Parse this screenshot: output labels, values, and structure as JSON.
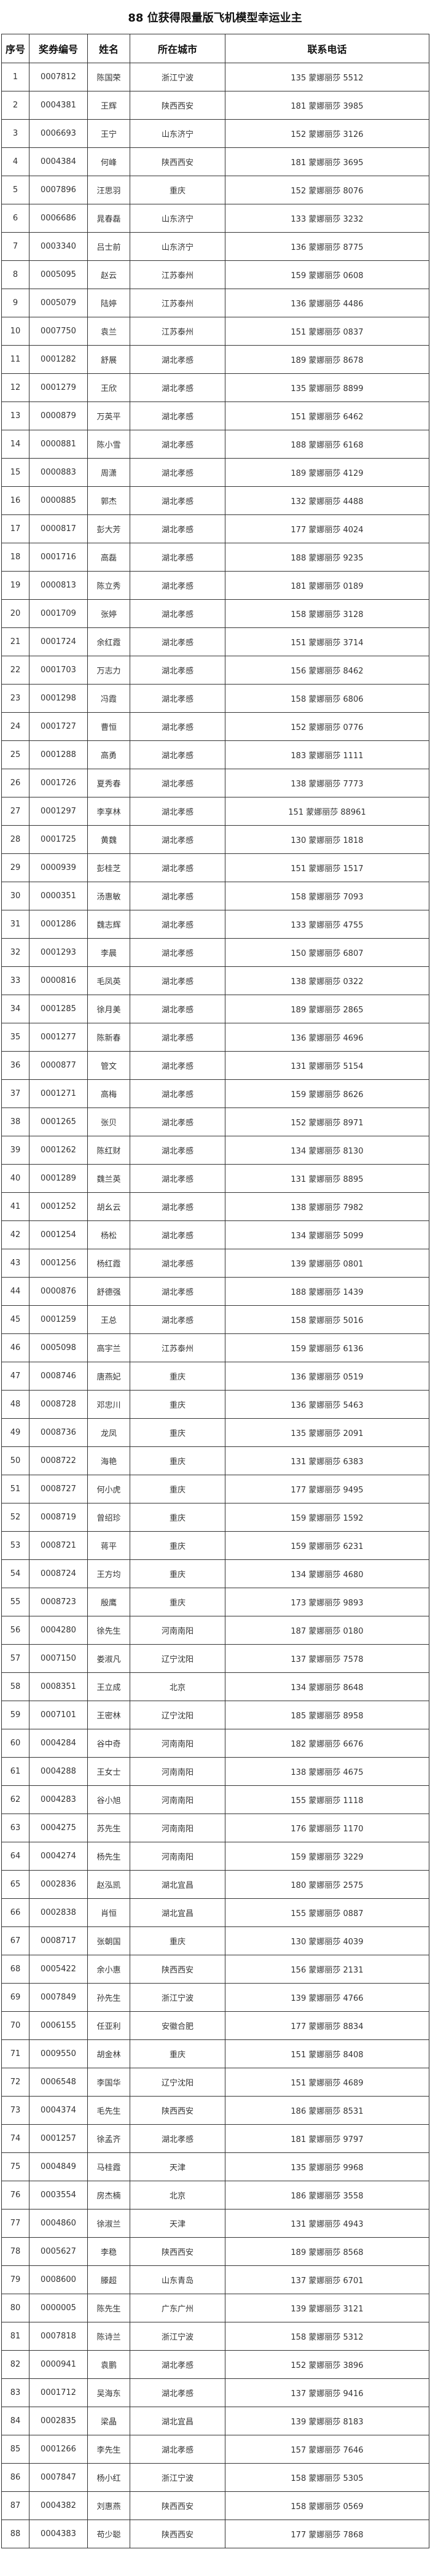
{
  "title": "88 位获得限量版飞机模型幸运业主",
  "columns": [
    "序号",
    "奖券编号",
    "姓名",
    "所在城市",
    "联系电话"
  ],
  "rows": [
    [
      "1",
      "0007812",
      "陈国荣",
      "浙江宁波",
      "135 蒙娜丽莎 5512"
    ],
    [
      "2",
      "0004381",
      "王辉",
      "陕西西安",
      "181 蒙娜丽莎 3985"
    ],
    [
      "3",
      "0006693",
      "王宁",
      "山东济宁",
      "152 蒙娜丽莎 3126"
    ],
    [
      "4",
      "0004384",
      "何峰",
      "陕西西安",
      "181 蒙娜丽莎 3695"
    ],
    [
      "5",
      "0007896",
      "汪思羽",
      "重庆",
      "152 蒙娜丽莎 8076"
    ],
    [
      "6",
      "0006686",
      "晁春磊",
      "山东济宁",
      "133 蒙娜丽莎 3232"
    ],
    [
      "7",
      "0003340",
      "吕士前",
      "山东济宁",
      "136 蒙娜丽莎 8775"
    ],
    [
      "8",
      "0005095",
      "赵云",
      "江苏泰州",
      "159 蒙娜丽莎 0608"
    ],
    [
      "9",
      "0005079",
      "陆婷",
      "江苏泰州",
      "136 蒙娜丽莎 4486"
    ],
    [
      "10",
      "0007750",
      "袁兰",
      "江苏泰州",
      "151 蒙娜丽莎 0837"
    ],
    [
      "11",
      "0001282",
      "舒展",
      "湖北孝感",
      "189 蒙娜丽莎 8678"
    ],
    [
      "12",
      "0001279",
      "王欣",
      "湖北孝感",
      "135 蒙娜丽莎 8899"
    ],
    [
      "13",
      "0000879",
      "万英平",
      "湖北孝感",
      "151 蒙娜丽莎 6462"
    ],
    [
      "14",
      "0000881",
      "陈小雪",
      "湖北孝感",
      "188 蒙娜丽莎 6168"
    ],
    [
      "15",
      "0000883",
      "周潇",
      "湖北孝感",
      "189 蒙娜丽莎 4129"
    ],
    [
      "16",
      "0000885",
      "郭杰",
      "湖北孝感",
      "132 蒙娜丽莎 4488"
    ],
    [
      "17",
      "0000817",
      "彭大芳",
      "湖北孝感",
      "177 蒙娜丽莎 4024"
    ],
    [
      "18",
      "0001716",
      "高磊",
      "湖北孝感",
      "188 蒙娜丽莎 9235"
    ],
    [
      "19",
      "0000813",
      "陈立秀",
      "湖北孝感",
      "181 蒙娜丽莎 0189"
    ],
    [
      "20",
      "0001709",
      "张婷",
      "湖北孝感",
      "158 蒙娜丽莎 3128"
    ],
    [
      "21",
      "0001724",
      "余红霞",
      "湖北孝感",
      "151 蒙娜丽莎 3714"
    ],
    [
      "22",
      "0001703",
      "万志力",
      "湖北孝感",
      "156 蒙娜丽莎 8462"
    ],
    [
      "23",
      "0001298",
      "冯霞",
      "湖北孝感",
      "158 蒙娜丽莎 6806"
    ],
    [
      "24",
      "0001727",
      "曹恒",
      "湖北孝感",
      "152 蒙娜丽莎 0776"
    ],
    [
      "25",
      "0001288",
      "高勇",
      "湖北孝感",
      "183 蒙娜丽莎 1111"
    ],
    [
      "26",
      "0001726",
      "夏秀春",
      "湖北孝感",
      "138 蒙娜丽莎 7773"
    ],
    [
      "27",
      "0001297",
      "李享林",
      "湖北孝感",
      "151 蒙娜丽莎 88961"
    ],
    [
      "28",
      "0001725",
      "黄魏",
      "湖北孝感",
      "130 蒙娜丽莎 1818"
    ],
    [
      "29",
      "0000939",
      "彭桂芝",
      "湖北孝感",
      "151 蒙娜丽莎 1517"
    ],
    [
      "30",
      "0000351",
      "汤惠敏",
      "湖北孝感",
      "158 蒙娜丽莎 7093"
    ],
    [
      "31",
      "0001286",
      "魏志辉",
      "湖北孝感",
      "133 蒙娜丽莎 4755"
    ],
    [
      "32",
      "0001293",
      "李晨",
      "湖北孝感",
      "150 蒙娜丽莎 6807"
    ],
    [
      "33",
      "0000816",
      "毛凤英",
      "湖北孝感",
      "138 蒙娜丽莎 0322"
    ],
    [
      "34",
      "0001285",
      "徐月美",
      "湖北孝感",
      "189 蒙娜丽莎 2865"
    ],
    [
      "35",
      "0001277",
      "陈新春",
      "湖北孝感",
      "136 蒙娜丽莎 4696"
    ],
    [
      "36",
      "0000877",
      "管文",
      "湖北孝感",
      "131 蒙娜丽莎 5154"
    ],
    [
      "37",
      "0001271",
      "高梅",
      "湖北孝感",
      "159 蒙娜丽莎 8626"
    ],
    [
      "38",
      "0001265",
      "张贝",
      "湖北孝感",
      "152 蒙娜丽莎 8971"
    ],
    [
      "39",
      "0001262",
      "陈红财",
      "湖北孝感",
      "134 蒙娜丽莎 8130"
    ],
    [
      "40",
      "0001289",
      "魏兰英",
      "湖北孝感",
      "131 蒙娜丽莎 8895"
    ],
    [
      "41",
      "0001252",
      "胡幺云",
      "湖北孝感",
      "138 蒙娜丽莎 7982"
    ],
    [
      "42",
      "0001254",
      "杨松",
      "湖北孝感",
      "134 蒙娜丽莎 5099"
    ],
    [
      "43",
      "0001256",
      "杨红霞",
      "湖北孝感",
      "139 蒙娜丽莎 0801"
    ],
    [
      "44",
      "0000876",
      "舒德强",
      "湖北孝感",
      "188 蒙娜丽莎 1439"
    ],
    [
      "45",
      "0001259",
      "王总",
      "湖北孝感",
      "158 蒙娜丽莎 5016"
    ],
    [
      "46",
      "0005098",
      "高宇兰",
      "江苏泰州",
      "159 蒙娜丽莎 6136"
    ],
    [
      "47",
      "0008746",
      "唐燕妃",
      "重庆",
      "136 蒙娜丽莎 0519"
    ],
    [
      "48",
      "0008728",
      "邓忠川",
      "重庆",
      "136 蒙娜丽莎 5463"
    ],
    [
      "49",
      "0008736",
      "龙凤",
      "重庆",
      "135 蒙娜丽莎 2091"
    ],
    [
      "50",
      "0008722",
      "海艳",
      "重庆",
      "131 蒙娜丽莎 6383"
    ],
    [
      "51",
      "0008727",
      "何小虎",
      "重庆",
      "177 蒙娜丽莎 9495"
    ],
    [
      "52",
      "0008719",
      "曾绍珍",
      "重庆",
      "159 蒙娜丽莎 1592"
    ],
    [
      "53",
      "0008721",
      "蒋平",
      "重庆",
      "159 蒙娜丽莎 6231"
    ],
    [
      "54",
      "0008724",
      "王方均",
      "重庆",
      "134 蒙娜丽莎 4680"
    ],
    [
      "55",
      "0008723",
      "殷鹰",
      "重庆",
      "173 蒙娜丽莎 9893"
    ],
    [
      "56",
      "0004280",
      "徐先生",
      "河南南阳",
      "187 蒙娜丽莎 0180"
    ],
    [
      "57",
      "0007150",
      "娄淑凡",
      "辽宁沈阳",
      "137 蒙娜丽莎 7578"
    ],
    [
      "58",
      "0008351",
      "王立成",
      "北京",
      "134 蒙娜丽莎 8648"
    ],
    [
      "59",
      "0007101",
      "王密林",
      "辽宁沈阳",
      "185 蒙娜丽莎 8958"
    ],
    [
      "60",
      "0004284",
      "谷中奇",
      "河南南阳",
      "182 蒙娜丽莎 6676"
    ],
    [
      "61",
      "0004288",
      "王女士",
      "河南南阳",
      "138 蒙娜丽莎 4675"
    ],
    [
      "62",
      "0004283",
      "谷小旭",
      "河南南阳",
      "155 蒙娜丽莎 1118"
    ],
    [
      "63",
      "0004275",
      "苏先生",
      "河南南阳",
      "176 蒙娜丽莎 1170"
    ],
    [
      "64",
      "0004274",
      "杨先生",
      "河南南阳",
      "159 蒙娜丽莎 3229"
    ],
    [
      "65",
      "0002836",
      "赵泓凯",
      "湖北宜昌",
      "180 蒙娜丽莎 2575"
    ],
    [
      "66",
      "0002838",
      "肖恒",
      "湖北宜昌",
      "155 蒙娜丽莎 0887"
    ],
    [
      "67",
      "0008717",
      "张朝国",
      "重庆",
      "130 蒙娜丽莎 4039"
    ],
    [
      "68",
      "0005422",
      "余小惠",
      "陕西西安",
      "156 蒙娜丽莎 2131"
    ],
    [
      "69",
      "0007849",
      "孙先生",
      "浙江宁波",
      "139 蒙娜丽莎 4766"
    ],
    [
      "70",
      "0006155",
      "任亚利",
      "安徽合肥",
      "177 蒙娜丽莎 8834"
    ],
    [
      "71",
      "0009550",
      "胡金林",
      "重庆",
      "151 蒙娜丽莎 8408"
    ],
    [
      "72",
      "0006548",
      "李国华",
      "辽宁沈阳",
      "151 蒙娜丽莎 4689"
    ],
    [
      "73",
      "0004374",
      "毛先生",
      "陕西西安",
      "186 蒙娜丽莎 8531"
    ],
    [
      "74",
      "0001257",
      "徐孟齐",
      "湖北孝感",
      "181 蒙娜丽莎 9797"
    ],
    [
      "75",
      "0004849",
      "马桂霞",
      "天津",
      "135 蒙娜丽莎 9968"
    ],
    [
      "76",
      "0003554",
      "房杰楠",
      "北京",
      "186 蒙娜丽莎 3558"
    ],
    [
      "77",
      "0004860",
      "徐淑兰",
      "天津",
      "131 蒙娜丽莎 4943"
    ],
    [
      "78",
      "0005627",
      "李稳",
      "陕西西安",
      "189 蒙娜丽莎 8568"
    ],
    [
      "79",
      "0008600",
      "滕超",
      "山东青岛",
      "137 蒙娜丽莎 6701"
    ],
    [
      "80",
      "0000005",
      "陈先生",
      "广东广州",
      "139 蒙娜丽莎 3121"
    ],
    [
      "81",
      "0007818",
      "陈诗兰",
      "浙江宁波",
      "158 蒙娜丽莎 5312"
    ],
    [
      "82",
      "0000941",
      "袁鹏",
      "湖北孝感",
      "152 蒙娜丽莎 3896"
    ],
    [
      "83",
      "0001712",
      "吴海东",
      "湖北孝感",
      "137 蒙娜丽莎 9416"
    ],
    [
      "84",
      "0002835",
      "梁晶",
      "湖北宜昌",
      "139 蒙娜丽莎 8183"
    ],
    [
      "85",
      "0001266",
      "李先生",
      "湖北孝感",
      "157 蒙娜丽莎 7646"
    ],
    [
      "86",
      "0007847",
      "杨小红",
      "浙江宁波",
      "158 蒙娜丽莎 5305"
    ],
    [
      "87",
      "0004382",
      "刘惠燕",
      "陕西西安",
      "158 蒙娜丽莎 0569"
    ],
    [
      "88",
      "0004383",
      "苟少聪",
      "陕西西安",
      "177 蒙娜丽莎 7868"
    ]
  ]
}
